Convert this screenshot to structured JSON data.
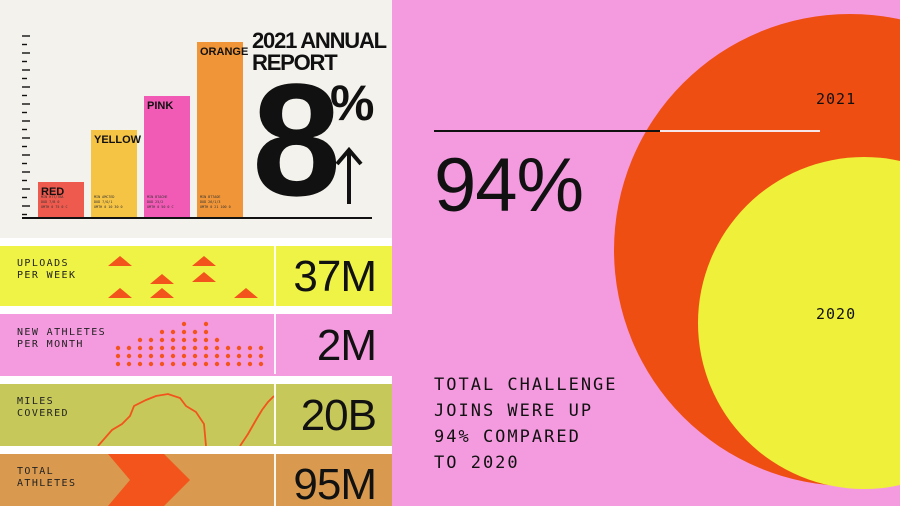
{
  "colors": {
    "red": "#ef5a4e",
    "yellow": "#f6c445",
    "pink": "#f15bb5",
    "orange": "#f09538",
    "band_yellow": "#eff345",
    "band_pink": "#f49be0",
    "band_olive": "#c6c95a",
    "band_tan": "#d99a4f",
    "accent_red": "#f2541b",
    "circle_2021": "#ef4e12",
    "circle_2020": "#eef03a",
    "right_bg": "#f49be0"
  },
  "report": {
    "title_line1": "2021 ANNUAL",
    "title_line2": "REPORT",
    "big_digit": "8",
    "percent_sign": "%",
    "arrow": "↑"
  },
  "chart_data": {
    "type": "bar",
    "categories": [
      "RED",
      "YELLOW",
      "PINK",
      "ORANGE"
    ],
    "values": [
      36,
      88,
      122,
      176
    ],
    "ylim": [
      0,
      185
    ],
    "title": "",
    "xlabel": "",
    "ylabel": "",
    "micro_labels": [
      [
        "MIN  HTT/TBA",
        "DUD  7/B 0",
        "OMTH  0 75 0 C"
      ],
      [
        "MIN  AMC7ED",
        "DUD  7/O/1",
        "OMTH  0 10 30 0"
      ],
      [
        "MIN  BTACHE",
        "DUD  25/2",
        "OMTH  0 50 0 C"
      ],
      [
        "MIN  BT7AOE",
        "DUD  26/1/3",
        "OMTH  0 21 100 0"
      ]
    ]
  },
  "stats": [
    {
      "label_line1": "UPLOADS",
      "label_line2": "PER WEEK",
      "value": "37M"
    },
    {
      "label_line1": "NEW ATHLETES",
      "label_line2": "PER MONTH",
      "value": "2M"
    },
    {
      "label_line1": "MILES",
      "label_line2": "COVERED",
      "value": "20B"
    },
    {
      "label_line1": "TOTAL",
      "label_line2": "ATHLETES",
      "value": "95M"
    }
  ],
  "challenge": {
    "big_value": "94%",
    "text_line1": "TOTAL CHALLENGE",
    "text_line2": "JOINS WERE UP",
    "text_line3": "94% COMPARED",
    "text_line4": "TO 2020",
    "year_2021": "2021",
    "year_2020": "2020",
    "growth_percent": 94
  }
}
